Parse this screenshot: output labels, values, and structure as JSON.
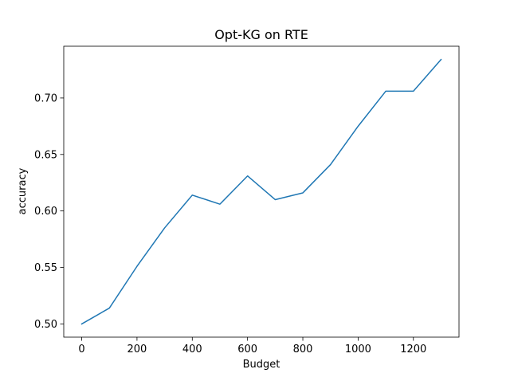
{
  "chart_data": {
    "type": "line",
    "title": "Opt-KG on RTE",
    "xlabel": "Budget",
    "ylabel": "accuracy",
    "xlim": [
      -65,
      1365
    ],
    "ylim": [
      0.4883,
      0.7458
    ],
    "xticks": [
      0,
      200,
      400,
      600,
      800,
      1000,
      1200
    ],
    "yticks": [
      0.5,
      0.55,
      0.6,
      0.65,
      0.7
    ],
    "ytick_labels": [
      "0.50",
      "0.55",
      "0.60",
      "0.65",
      "0.70"
    ],
    "grid": false,
    "series": [
      {
        "color": "#1f77b4",
        "x": [
          0,
          100,
          200,
          300,
          400,
          500,
          600,
          700,
          800,
          900,
          1000,
          1100,
          1200,
          1300
        ],
        "y": [
          0.5,
          0.514,
          0.551,
          0.585,
          0.614,
          0.606,
          0.631,
          0.61,
          0.616,
          0.641,
          0.675,
          0.706,
          0.706,
          0.734
        ]
      }
    ]
  }
}
